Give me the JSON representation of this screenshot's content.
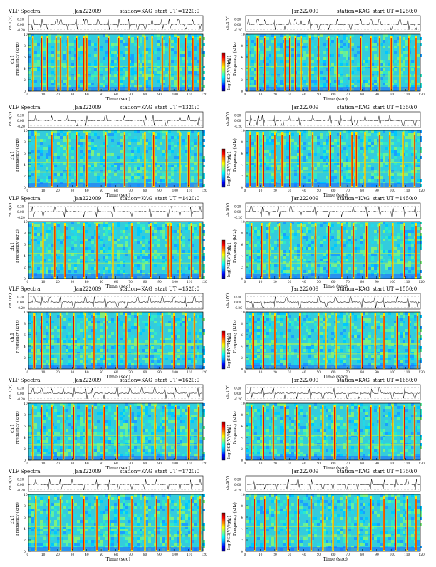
{
  "chart_data": {
    "type": "heatmap",
    "figure": "VLF dynamic spectra, station KAG, 22 Jan 2009",
    "colorbar_colors": [
      "#000080",
      "#0000ff",
      "#00a0ff",
      "#00ffff",
      "#80ff80",
      "#ffff00",
      "#ff8000",
      "#ff0000",
      "#800000"
    ],
    "panel_template": {
      "title_left": "VLF Spectra",
      "date": "Jan222009",
      "station": "station=KAG",
      "start_prefix": "start UT =",
      "waveform_ylabel": "ch.1(V)",
      "waveform_ticks": [
        "0.20",
        "0.00",
        "-0.20"
      ],
      "ylabel_channel": "ch.1",
      "ylabel": "Frequency (kHz)",
      "xlabel": "Time (sec)",
      "colorbar_label": "log(PSD(V²/Hz))",
      "ylim": [
        0,
        10
      ],
      "y_ticks": [
        "0",
        "2",
        "4",
        "6",
        "8",
        "10"
      ],
      "xlim": [
        0,
        120
      ],
      "x_ticks": [
        "0",
        "10",
        "20",
        "30",
        "40",
        "50",
        "60",
        "70",
        "80",
        "90",
        "100",
        "110",
        "120"
      ]
    },
    "panels": [
      {
        "start_ut": "1220:0",
        "row": 0,
        "col": 0,
        "spikes_sec": [
          3,
          9,
          13,
          19,
          22,
          27,
          33,
          38,
          40,
          48,
          55,
          62,
          69,
          75,
          80,
          85,
          92,
          97,
          103,
          108,
          113,
          118
        ]
      },
      {
        "start_ut": "1250:0",
        "row": 0,
        "col": 1,
        "spikes_sec": [
          2,
          8,
          13,
          20,
          27,
          30,
          34,
          38,
          44,
          50,
          57,
          63,
          72,
          79,
          86,
          92,
          100,
          106,
          112,
          117
        ]
      },
      {
        "start_ut": "1320:0",
        "row": 1,
        "col": 0,
        "spikes_sec": [
          5,
          16,
          27,
          33,
          40,
          53,
          66,
          80,
          86,
          95,
          104,
          110,
          117
        ]
      },
      {
        "start_ut": "1350:0",
        "row": 1,
        "col": 1,
        "spikes_sec": [
          3,
          8,
          12,
          20,
          25,
          30,
          37,
          46,
          58,
          65,
          73,
          76,
          82,
          92,
          99,
          108,
          116
        ]
      },
      {
        "start_ut": "1420:0",
        "row": 2,
        "col": 0,
        "spikes_sec": [
          3,
          10,
          18,
          25,
          38,
          47,
          58,
          71,
          84,
          96,
          98,
          104,
          112,
          118
        ]
      },
      {
        "start_ut": "1450:0",
        "row": 2,
        "col": 1,
        "spikes_sec": [
          4,
          11,
          16,
          23,
          31,
          38,
          48,
          57,
          66,
          74,
          83,
          92,
          101,
          109,
          117
        ]
      },
      {
        "start_ut": "1520:0",
        "row": 3,
        "col": 0,
        "spikes_sec": [
          4,
          9,
          15,
          22,
          31,
          39,
          45,
          53,
          61,
          67,
          75,
          83,
          92,
          100,
          108,
          114
        ]
      },
      {
        "start_ut": "1550:0",
        "row": 3,
        "col": 1,
        "spikes_sec": [
          5,
          12,
          20,
          28,
          37,
          50,
          55,
          62,
          72,
          80,
          89,
          95,
          104,
          112,
          118
        ]
      },
      {
        "start_ut": "1620:0",
        "row": 4,
        "col": 0,
        "spikes_sec": [
          3,
          9,
          16,
          24,
          31,
          40,
          44,
          52,
          61,
          70,
          78,
          87,
          94,
          101,
          110,
          117
        ]
      },
      {
        "start_ut": "1650:0",
        "row": 4,
        "col": 1,
        "spikes_sec": [
          4,
          12,
          19,
          27,
          35,
          44,
          53,
          61,
          70,
          78,
          86,
          92,
          101,
          109,
          116
        ]
      },
      {
        "start_ut": "1720:0",
        "row": 5,
        "col": 0,
        "spikes_sec": [
          5,
          14,
          22,
          30,
          38,
          47,
          55,
          62,
          71,
          80,
          88,
          96,
          104,
          112,
          118
        ]
      },
      {
        "start_ut": "1750:0",
        "row": 5,
        "col": 1,
        "spikes_sec": [
          6,
          13,
          21,
          29,
          36,
          45,
          53,
          60,
          69,
          77,
          86,
          95,
          103,
          111,
          117
        ]
      }
    ]
  }
}
